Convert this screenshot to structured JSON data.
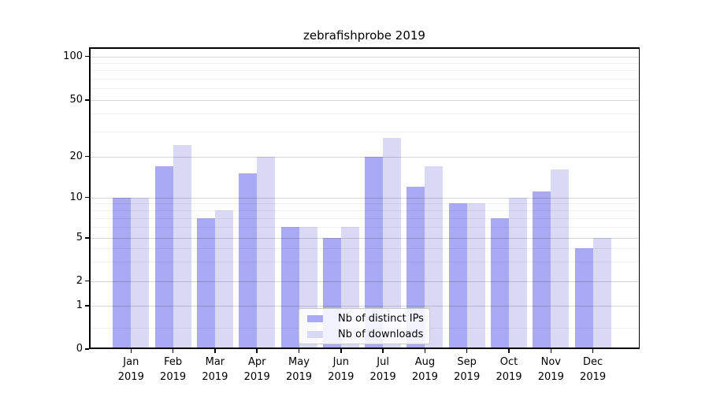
{
  "chart_data": {
    "type": "bar",
    "title": "zebrafishprobe 2019",
    "categories": [
      "Jan 2019",
      "Feb 2019",
      "Mar 2019",
      "Apr 2019",
      "May 2019",
      "Jun 2019",
      "Jul 2019",
      "Aug 2019",
      "Sep 2019",
      "Oct 2019",
      "Nov 2019",
      "Dec 2019"
    ],
    "series": [
      {
        "name": "Nb of distinct IPs",
        "color": "#a9a9f4",
        "values": [
          10,
          17,
          7,
          15,
          6,
          5,
          20,
          12,
          9,
          7,
          11,
          4
        ]
      },
      {
        "name": "Nb of downloads",
        "color": "#d9d9f6",
        "values": [
          10,
          24,
          8,
          20,
          6,
          6,
          27,
          17,
          9,
          10,
          16,
          5
        ]
      }
    ],
    "yscale": "symlog",
    "ylim": [
      0,
      110
    ],
    "yticks": [
      100,
      50,
      20,
      10,
      5,
      2,
      1,
      0
    ],
    "ytick_labels": [
      "100",
      "50",
      "20",
      "10",
      "5",
      "2",
      "1",
      "0"
    ],
    "minor_yticks": [
      90,
      80,
      70,
      60,
      40,
      30,
      9,
      8,
      7,
      6,
      4,
      3,
      0.5
    ],
    "grid": "on",
    "legend_position": "lower center",
    "bar_colors": {
      "ips": "#a9a9f4",
      "downloads": "#d9d9f6"
    }
  },
  "title": "zebrafishprobe 2019",
  "legend": {
    "items": [
      {
        "label": "Nb of distinct IPs",
        "color": "#a9a9f4"
      },
      {
        "label": "Nb of downloads",
        "color": "#d9d9f6"
      }
    ]
  }
}
